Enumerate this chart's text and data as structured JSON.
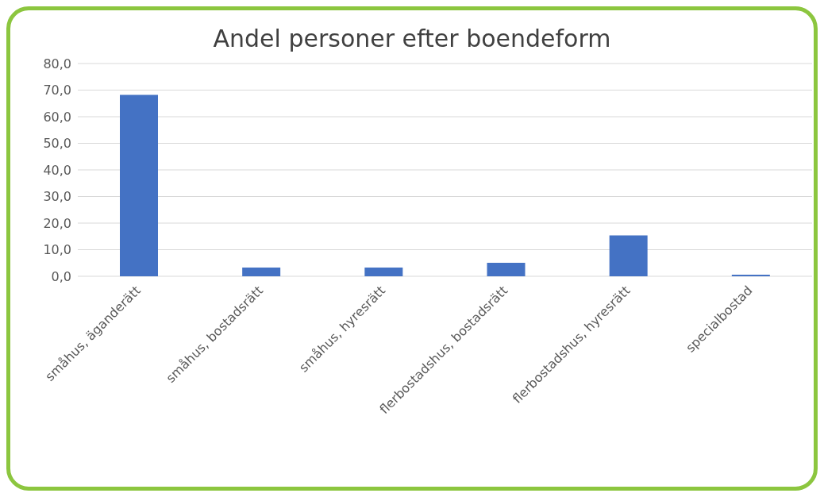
{
  "chart_data": {
    "type": "bar",
    "title": "Andel personer efter boendeform",
    "categories": [
      "småhus, äganderätt",
      "småhus, bostadsrätt",
      "småhus, hyresrätt",
      "flerbostadshus, bostadsrätt",
      "flerbostadshus, hyresrätt",
      "specialbostad"
    ],
    "values": [
      68.2,
      3.3,
      3.3,
      5.1,
      15.4,
      0.6
    ],
    "color": "#4472c4",
    "ylim": [
      0,
      80
    ],
    "yticks": [
      {
        "value": 0,
        "label": "0,0"
      },
      {
        "value": 10,
        "label": "10,0"
      },
      {
        "value": 20,
        "label": "20,0"
      },
      {
        "value": 30,
        "label": "30,0"
      },
      {
        "value": 40,
        "label": "40,0"
      },
      {
        "value": 50,
        "label": "50,0"
      },
      {
        "value": 60,
        "label": "60,0"
      },
      {
        "value": 70,
        "label": "70,0"
      },
      {
        "value": 80,
        "label": "80,0"
      }
    ],
    "grid": "y"
  }
}
